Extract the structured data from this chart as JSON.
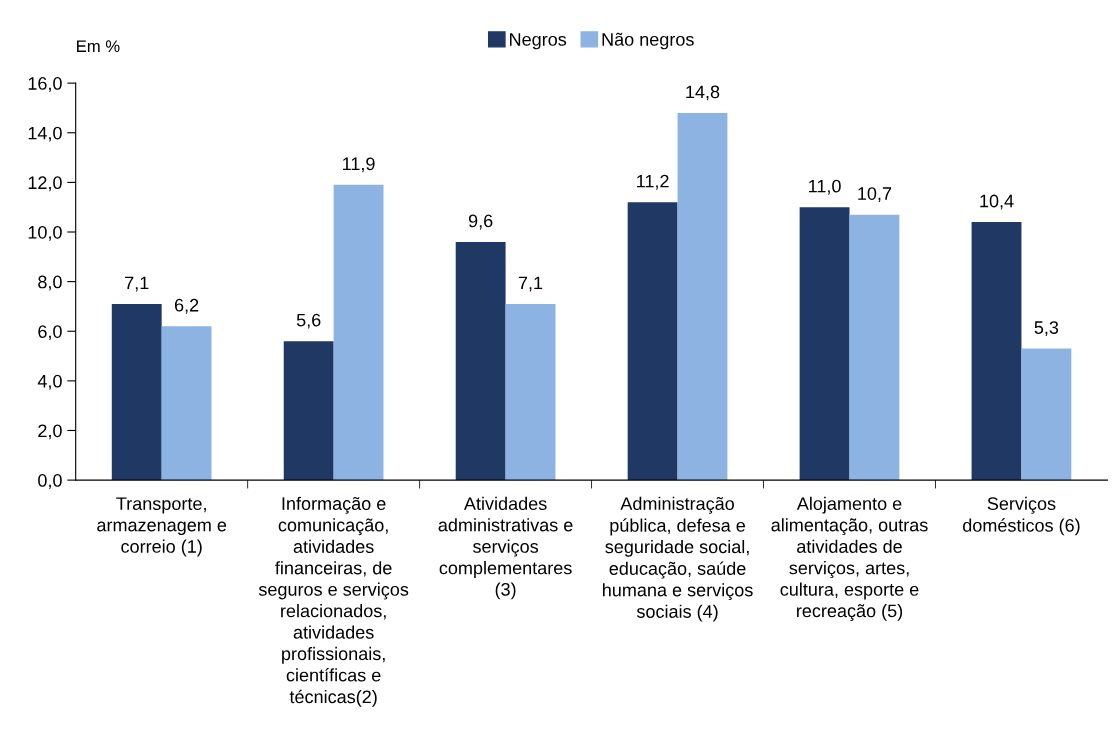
{
  "chart_data": {
    "type": "bar",
    "ylabel": "Em %",
    "categories": [
      "Transporte,\narmazenagem e\ncorreio (1)",
      "Informação e\ncomunicação,\natividades\nfinanceiras, de\nseguros e serviços\nrelacionados,\natividades\nprofissionais,\ncientíficas e\ntécnicas(2)",
      "Atividades\nadministrativas e\nserviços\ncomplementares\n(3)",
      "Administração\npública, defesa e\nseguridade social,\neducação, saúde\nhumana e serviços\nsociais (4)",
      "Alojamento e\nalimentação, outras\natividades de\nserviços, artes,\ncultura, esporte e\nrecreação (5)",
      "Serviços\ndomésticos (6)"
    ],
    "series": [
      {
        "name": "Negros",
        "color": "#1f3864",
        "values": [
          7.1,
          5.6,
          9.6,
          11.2,
          11.0,
          10.4
        ],
        "value_labels": [
          "7,1",
          "5,6",
          "9,6",
          "11,2",
          "11,0",
          "10,4"
        ]
      },
      {
        "name": "Não negros",
        "color": "#8db3e2",
        "values": [
          6.2,
          11.9,
          7.1,
          14.8,
          10.7,
          5.3
        ],
        "value_labels": [
          "6,2",
          "11,9",
          "7,1",
          "14,8",
          "10,7",
          "5,3"
        ]
      }
    ],
    "ylim": [
      0,
      16
    ],
    "yticks": [
      {
        "value": 0,
        "label": "0,0"
      },
      {
        "value": 2,
        "label": "2,0"
      },
      {
        "value": 4,
        "label": "4,0"
      },
      {
        "value": 6,
        "label": "6,0"
      },
      {
        "value": 8,
        "label": "8,0"
      },
      {
        "value": 10,
        "label": "10,0"
      },
      {
        "value": 12,
        "label": "12,0"
      },
      {
        "value": 14,
        "label": "14,0"
      },
      {
        "value": 16,
        "label": "16,0"
      }
    ],
    "grid": false,
    "legend": "top"
  }
}
